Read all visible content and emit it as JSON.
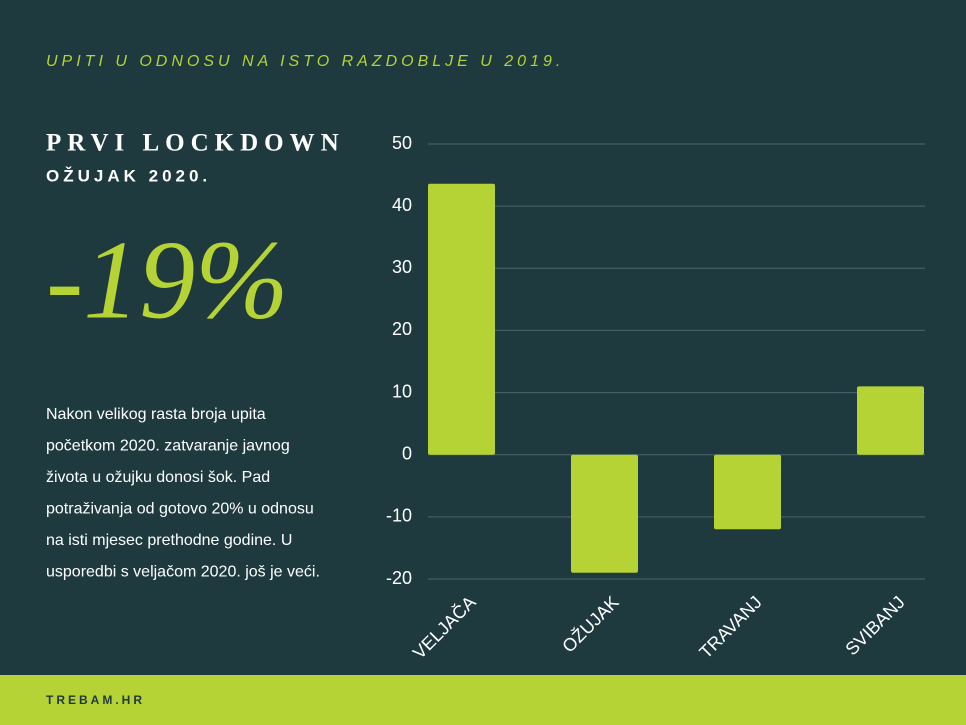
{
  "chart_data": {
    "type": "bar",
    "title": "UPITI U ODNOSU NA ISTO RAZDOBLJE U 2019.",
    "categories": [
      "VELJAČA",
      "OŽUJAK",
      "TRAVANJ",
      "SVIBANJ"
    ],
    "values": [
      43.6,
      -19,
      -12,
      11
    ],
    "color": "#b5d334",
    "ylim": [
      -20,
      50
    ],
    "yticks": [
      -20,
      -10,
      0,
      10,
      20,
      30,
      40,
      50
    ],
    "grid": true
  },
  "panel": {
    "heading": "PRVI LOCKDOWN",
    "subheading": "OŽUJAK 2020.",
    "big_number": "-19%",
    "text_lines": [
      "Nakon velikog rasta broja upita",
      "početkom 2020. zatvaranje javnog",
      "života u ožujku donosi šok. Pad",
      "potraživanja od gotovo 20% u odnosu",
      "na isti mjesec prethodne godine. U",
      "usporedbi s veljačom 2020.  još je veći."
    ]
  },
  "footer": {
    "brand": "TREBAM.HR"
  }
}
